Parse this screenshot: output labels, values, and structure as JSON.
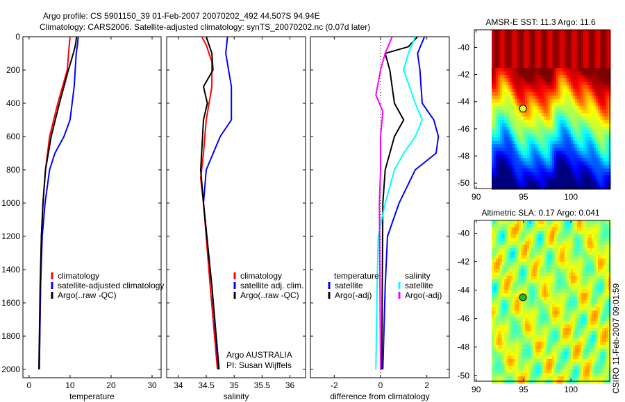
{
  "title_line1": "Argo profile: CS 5901150_39 01-Feb-2007 20070202_492 44.507S 94.94E",
  "title_line2": "Climatology: CARS2006. Satellite-adjusted climatology: synTS_20070202.nc (0.07d later)",
  "side_stamp": "CSIRO 11-Feb-2007 09:01:59",
  "colors": {
    "red": "#ff0000",
    "blue": "#0000ff",
    "black": "#000000",
    "cyan": "#00ffff",
    "magenta": "#ff00ff"
  },
  "chart_data": [
    {
      "type": "line",
      "xlabel": "temperature",
      "ylabel": "",
      "xlim": [
        -1.5,
        32.2
      ],
      "ylim": [
        2050,
        0
      ],
      "xticks": [
        "0",
        "10",
        "20",
        "30"
      ],
      "yticks": [
        "0",
        "200",
        "400",
        "600",
        "800",
        "1000",
        "1200",
        "1400",
        "1600",
        "1800",
        "2000"
      ],
      "legend": [
        "climatology",
        "satellite-adjusted climatology",
        "Argo(..raw -QC)"
      ],
      "series": [
        {
          "name": "climatology",
          "color": "#ff0000",
          "p": [
            0,
            50,
            200,
            400,
            600,
            800,
            1000,
            1200,
            1500,
            2000
          ],
          "v": [
            10,
            9.8,
            9.3,
            7,
            5,
            4,
            3.4,
            3,
            2.8,
            2.5
          ]
        },
        {
          "name": "satellite-adjusted climatology",
          "color": "#0000ff",
          "p": [
            0,
            50,
            100,
            300,
            500,
            600,
            700,
            800,
            1000,
            1200,
            1500,
            2000
          ],
          "v": [
            12,
            11.8,
            11.5,
            11,
            10,
            8.5,
            6.3,
            5,
            3.9,
            3.2,
            2.8,
            2.5
          ]
        },
        {
          "name": "Argo(..raw -QC)",
          "color": "#000000",
          "p": [
            0,
            50,
            100,
            200,
            400,
            600,
            800,
            1000,
            1200,
            1500,
            2000
          ],
          "v": [
            11.6,
            11.3,
            10.8,
            9.6,
            7.4,
            5.4,
            4,
            3.4,
            3,
            2.7,
            2.4
          ]
        }
      ]
    },
    {
      "type": "line",
      "xlabel": "salinity",
      "xlim": [
        33.79,
        36.28
      ],
      "ylim": [
        2050,
        0
      ],
      "xticks": [
        "34",
        "34.5",
        "35",
        "35.5",
        "36"
      ],
      "legend": [
        "climatology",
        "satellite adj. clim.",
        "Argo(..raw -QC)"
      ],
      "annotation": [
        "Argo AUSTRALIA",
        "PI: Susan Wijffels"
      ],
      "series": [
        {
          "name": "climatology",
          "color": "#ff0000",
          "p": [
            0,
            50,
            150,
            300,
            500,
            700,
            850,
            1000,
            1500,
            2000
          ],
          "v": [
            34.42,
            34.5,
            34.6,
            34.6,
            34.5,
            34.45,
            34.4,
            34.45,
            34.57,
            34.7
          ]
        },
        {
          "name": "satellite adj. clim.",
          "color": "#0000ff",
          "p": [
            0,
            100,
            300,
            500,
            600,
            800,
            1000,
            1500,
            2000
          ],
          "v": [
            34.88,
            34.85,
            34.95,
            34.95,
            34.75,
            34.5,
            34.45,
            34.6,
            34.72
          ]
        },
        {
          "name": "Argo(..raw -QC)",
          "color": "#000000",
          "p": [
            0,
            100,
            200,
            300,
            400,
            500,
            800,
            1000,
            1500,
            2000
          ],
          "v": [
            34.5,
            34.6,
            34.62,
            34.45,
            34.52,
            34.45,
            34.4,
            34.45,
            34.6,
            34.73
          ]
        }
      ]
    },
    {
      "type": "line",
      "xlabel": "difference from climatology",
      "xlim": [
        -3.03,
        2.97
      ],
      "ylim": [
        2050,
        0
      ],
      "xticks": [
        "-2",
        "0",
        "2"
      ],
      "legend_headings": [
        "temperature",
        "salinity"
      ],
      "legend": [
        "satellite",
        "Argo(-adj)",
        "satellite",
        "Argo(-adj)"
      ],
      "series": [
        {
          "name": "temperature satellite",
          "color": "#0000ff",
          "p": [
            0,
            100,
            200,
            400,
            500,
            600,
            700,
            800,
            1000,
            1200,
            1500,
            2000
          ],
          "v": [
            1.9,
            1.6,
            1.7,
            1.8,
            2.3,
            2.5,
            2.4,
            1.5,
            0.8,
            0.3,
            0.2,
            0.1
          ]
        },
        {
          "name": "temperature Argo(-adj)",
          "color": "#000000",
          "p": [
            0,
            60,
            100,
            200,
            400,
            500,
            600,
            800,
            1000,
            2000
          ],
          "v": [
            1.6,
            1.2,
            0.2,
            0.4,
            0.6,
            1.0,
            0.6,
            0.2,
            0.1,
            0.05
          ]
        },
        {
          "name": "salinity satellite",
          "color": "#00ffff",
          "p": [
            0,
            100,
            200,
            400,
            500,
            600,
            700,
            800,
            1000,
            1200,
            1500,
            2000
          ],
          "v": [
            1.5,
            1.2,
            1.0,
            1.5,
            1.8,
            1.5,
            1.0,
            0.6,
            0.2,
            -0.1,
            -0.15,
            -0.2
          ]
        },
        {
          "name": "salinity Argo(-adj)",
          "color": "#ff00ff",
          "p": [
            0,
            100,
            200,
            350,
            450,
            600,
            800,
            1000,
            2000
          ],
          "v": [
            0.5,
            0.2,
            0,
            -0.2,
            0.1,
            0,
            0,
            -0.05,
            0
          ]
        }
      ]
    },
    {
      "type": "heatmap",
      "title": "AMSR-E SST: 11.3 Argo: 11.6",
      "xticks": [
        "90",
        "95",
        "100"
      ],
      "yticks": [
        "-40",
        "-42",
        "-44",
        "-46",
        "-48",
        "-50"
      ],
      "xlim": [
        89.8,
        104.1
      ],
      "ylim": [
        -50.4,
        -38.7
      ],
      "marker": {
        "lon": 94.94,
        "lat": -44.507
      }
    },
    {
      "type": "heatmap",
      "title": "Altimetric SLA: 0.17 Argo: 0.041",
      "xticks": [
        "90",
        "95",
        "100"
      ],
      "yticks": [
        "-40",
        "-42",
        "-44",
        "-46",
        "-48",
        "-50"
      ],
      "xlim": [
        89.8,
        104.1
      ],
      "ylim": [
        -50.4,
        -39.1
      ],
      "marker": {
        "lon": 94.94,
        "lat": -44.507
      }
    }
  ]
}
